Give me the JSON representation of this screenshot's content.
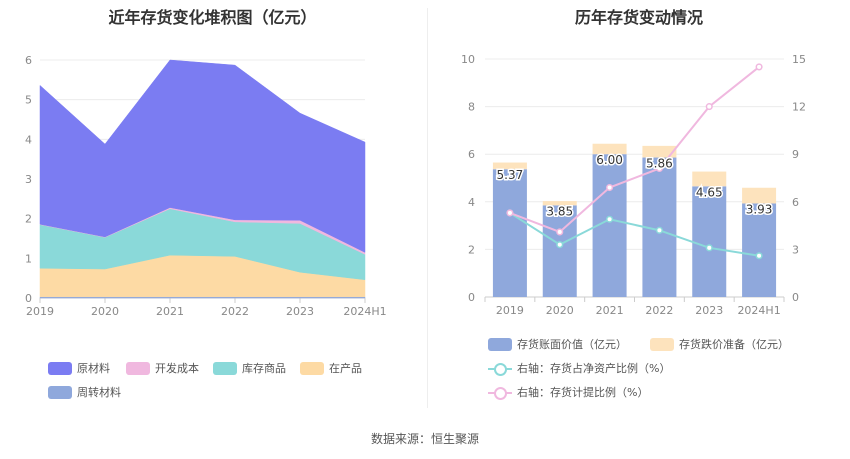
{
  "source": "数据来源：恒生聚源",
  "left": {
    "title": "近年存货变化堆积图（亿元）",
    "legend": [
      {
        "label": "原材料",
        "color": "#7b7cf2"
      },
      {
        "label": "开发成本",
        "color": "#f0b8df"
      },
      {
        "label": "库存商品",
        "color": "#8ad9d9"
      },
      {
        "label": "在产品",
        "color": "#fddaa4"
      },
      {
        "label": "周转材料",
        "color": "#8fa8dc"
      }
    ]
  },
  "right": {
    "title": "历年存货变动情况",
    "legend": [
      {
        "label": "存货账面价值（亿元）",
        "color": "#8fa8dc",
        "kind": "bar"
      },
      {
        "label": "存货跌价准备（亿元）",
        "color": "#fde3bd",
        "kind": "bar"
      },
      {
        "label": "右轴：存货占净资产比例（%）",
        "color": "#8ad9d9",
        "kind": "line"
      },
      {
        "label": "右轴：存货计提比例（%）",
        "color": "#f0b8df",
        "kind": "line"
      }
    ]
  },
  "chart_data": [
    {
      "type": "area",
      "title": "近年存货变化堆积图（亿元）",
      "categories": [
        "2019",
        "2020",
        "2021",
        "2022",
        "2023",
        "2024H1"
      ],
      "ylim": [
        0,
        6
      ],
      "yticks": [
        0,
        1,
        2,
        3,
        4,
        5,
        6
      ],
      "stacked": true,
      "series": [
        {
          "name": "周转材料",
          "color": "#8fa8dc",
          "values": [
            0.03,
            0.03,
            0.03,
            0.03,
            0.03,
            0.03
          ]
        },
        {
          "name": "在产品",
          "color": "#fddaa4",
          "values": [
            0.72,
            0.7,
            1.05,
            1.02,
            0.62,
            0.43
          ]
        },
        {
          "name": "库存商品",
          "color": "#8ad9d9",
          "values": [
            1.1,
            0.8,
            1.17,
            0.87,
            1.23,
            0.64
          ]
        },
        {
          "name": "开发成本",
          "color": "#f0b8df",
          "values": [
            0.01,
            0.01,
            0.03,
            0.05,
            0.08,
            0.05
          ]
        },
        {
          "name": "原材料",
          "color": "#7b7cf2",
          "values": [
            3.5,
            2.34,
            3.72,
            3.9,
            2.7,
            2.78
          ]
        }
      ]
    },
    {
      "type": "bar",
      "title": "历年存货变动情况",
      "categories": [
        "2019",
        "2020",
        "2021",
        "2022",
        "2023",
        "2024H1"
      ],
      "ylim": [
        0,
        10
      ],
      "yticks": [
        0,
        2,
        4,
        6,
        8,
        10
      ],
      "y2lim": [
        0,
        15
      ],
      "y2ticks": [
        0,
        3,
        6,
        9,
        12,
        15
      ],
      "stacked": true,
      "bar_series": [
        {
          "name": "存货账面价值（亿元）",
          "color": "#8fa8dc",
          "values": [
            5.37,
            3.85,
            6.0,
            5.86,
            4.65,
            3.93
          ],
          "labels": [
            "5.37",
            "3.85",
            "6.00",
            "5.86",
            "4.65",
            "3.93"
          ]
        },
        {
          "name": "存货跌价准备（亿元）",
          "color": "#fde3bd",
          "values": [
            0.28,
            0.18,
            0.44,
            0.49,
            0.62,
            0.66
          ]
        }
      ],
      "line_series": [
        {
          "name": "右轴：存货占净资产比例（%）",
          "color": "#8ad9d9",
          "axis": "right",
          "values": [
            5.3,
            3.3,
            4.9,
            4.2,
            3.1,
            2.6
          ]
        },
        {
          "name": "右轴：存货计提比例（%）",
          "color": "#f0b8df",
          "axis": "right",
          "values": [
            5.3,
            4.1,
            6.9,
            8.1,
            12.0,
            14.5
          ]
        }
      ]
    }
  ]
}
